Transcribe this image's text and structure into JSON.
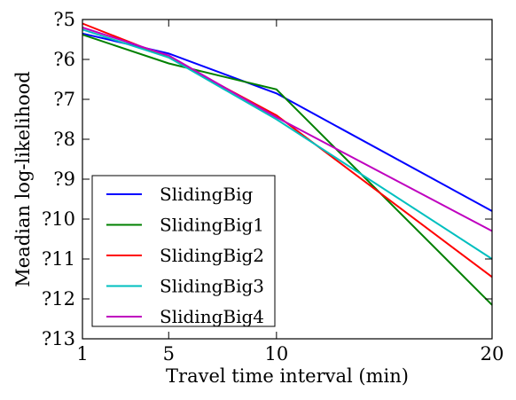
{
  "chart_data": {
    "type": "line",
    "title": "",
    "xlabel": "Travel time interval (min)",
    "ylabel": "Meadian log-likelihood",
    "x": [
      1,
      5,
      10,
      20
    ],
    "x_tick_labels": [
      "1",
      "5",
      "10",
      "20"
    ],
    "y_tick_labels": [
      "?5",
      "?6",
      "?7",
      "?8",
      "?9",
      "?10",
      "?11",
      "?12",
      "?13"
    ],
    "ylim": [
      -13,
      -5
    ],
    "grid": false,
    "legend_position": "lower-left",
    "series": [
      {
        "name": "SlidingBig",
        "color": "#0000ff",
        "values": [
          -5.35,
          -5.85,
          -6.85,
          -9.8
        ]
      },
      {
        "name": "SlidingBig1",
        "color": "#008000",
        "values": [
          -5.38,
          -6.1,
          -6.75,
          -12.15
        ]
      },
      {
        "name": "SlidingBig2",
        "color": "#ff0000",
        "values": [
          -5.1,
          -5.95,
          -7.4,
          -11.45
        ]
      },
      {
        "name": "SlidingBig3",
        "color": "#00bfbf",
        "values": [
          -5.25,
          -5.95,
          -7.5,
          -11.0
        ]
      },
      {
        "name": "SlidingBig4",
        "color": "#bf00bf",
        "values": [
          -5.2,
          -5.9,
          -7.45,
          -10.3
        ]
      }
    ]
  }
}
